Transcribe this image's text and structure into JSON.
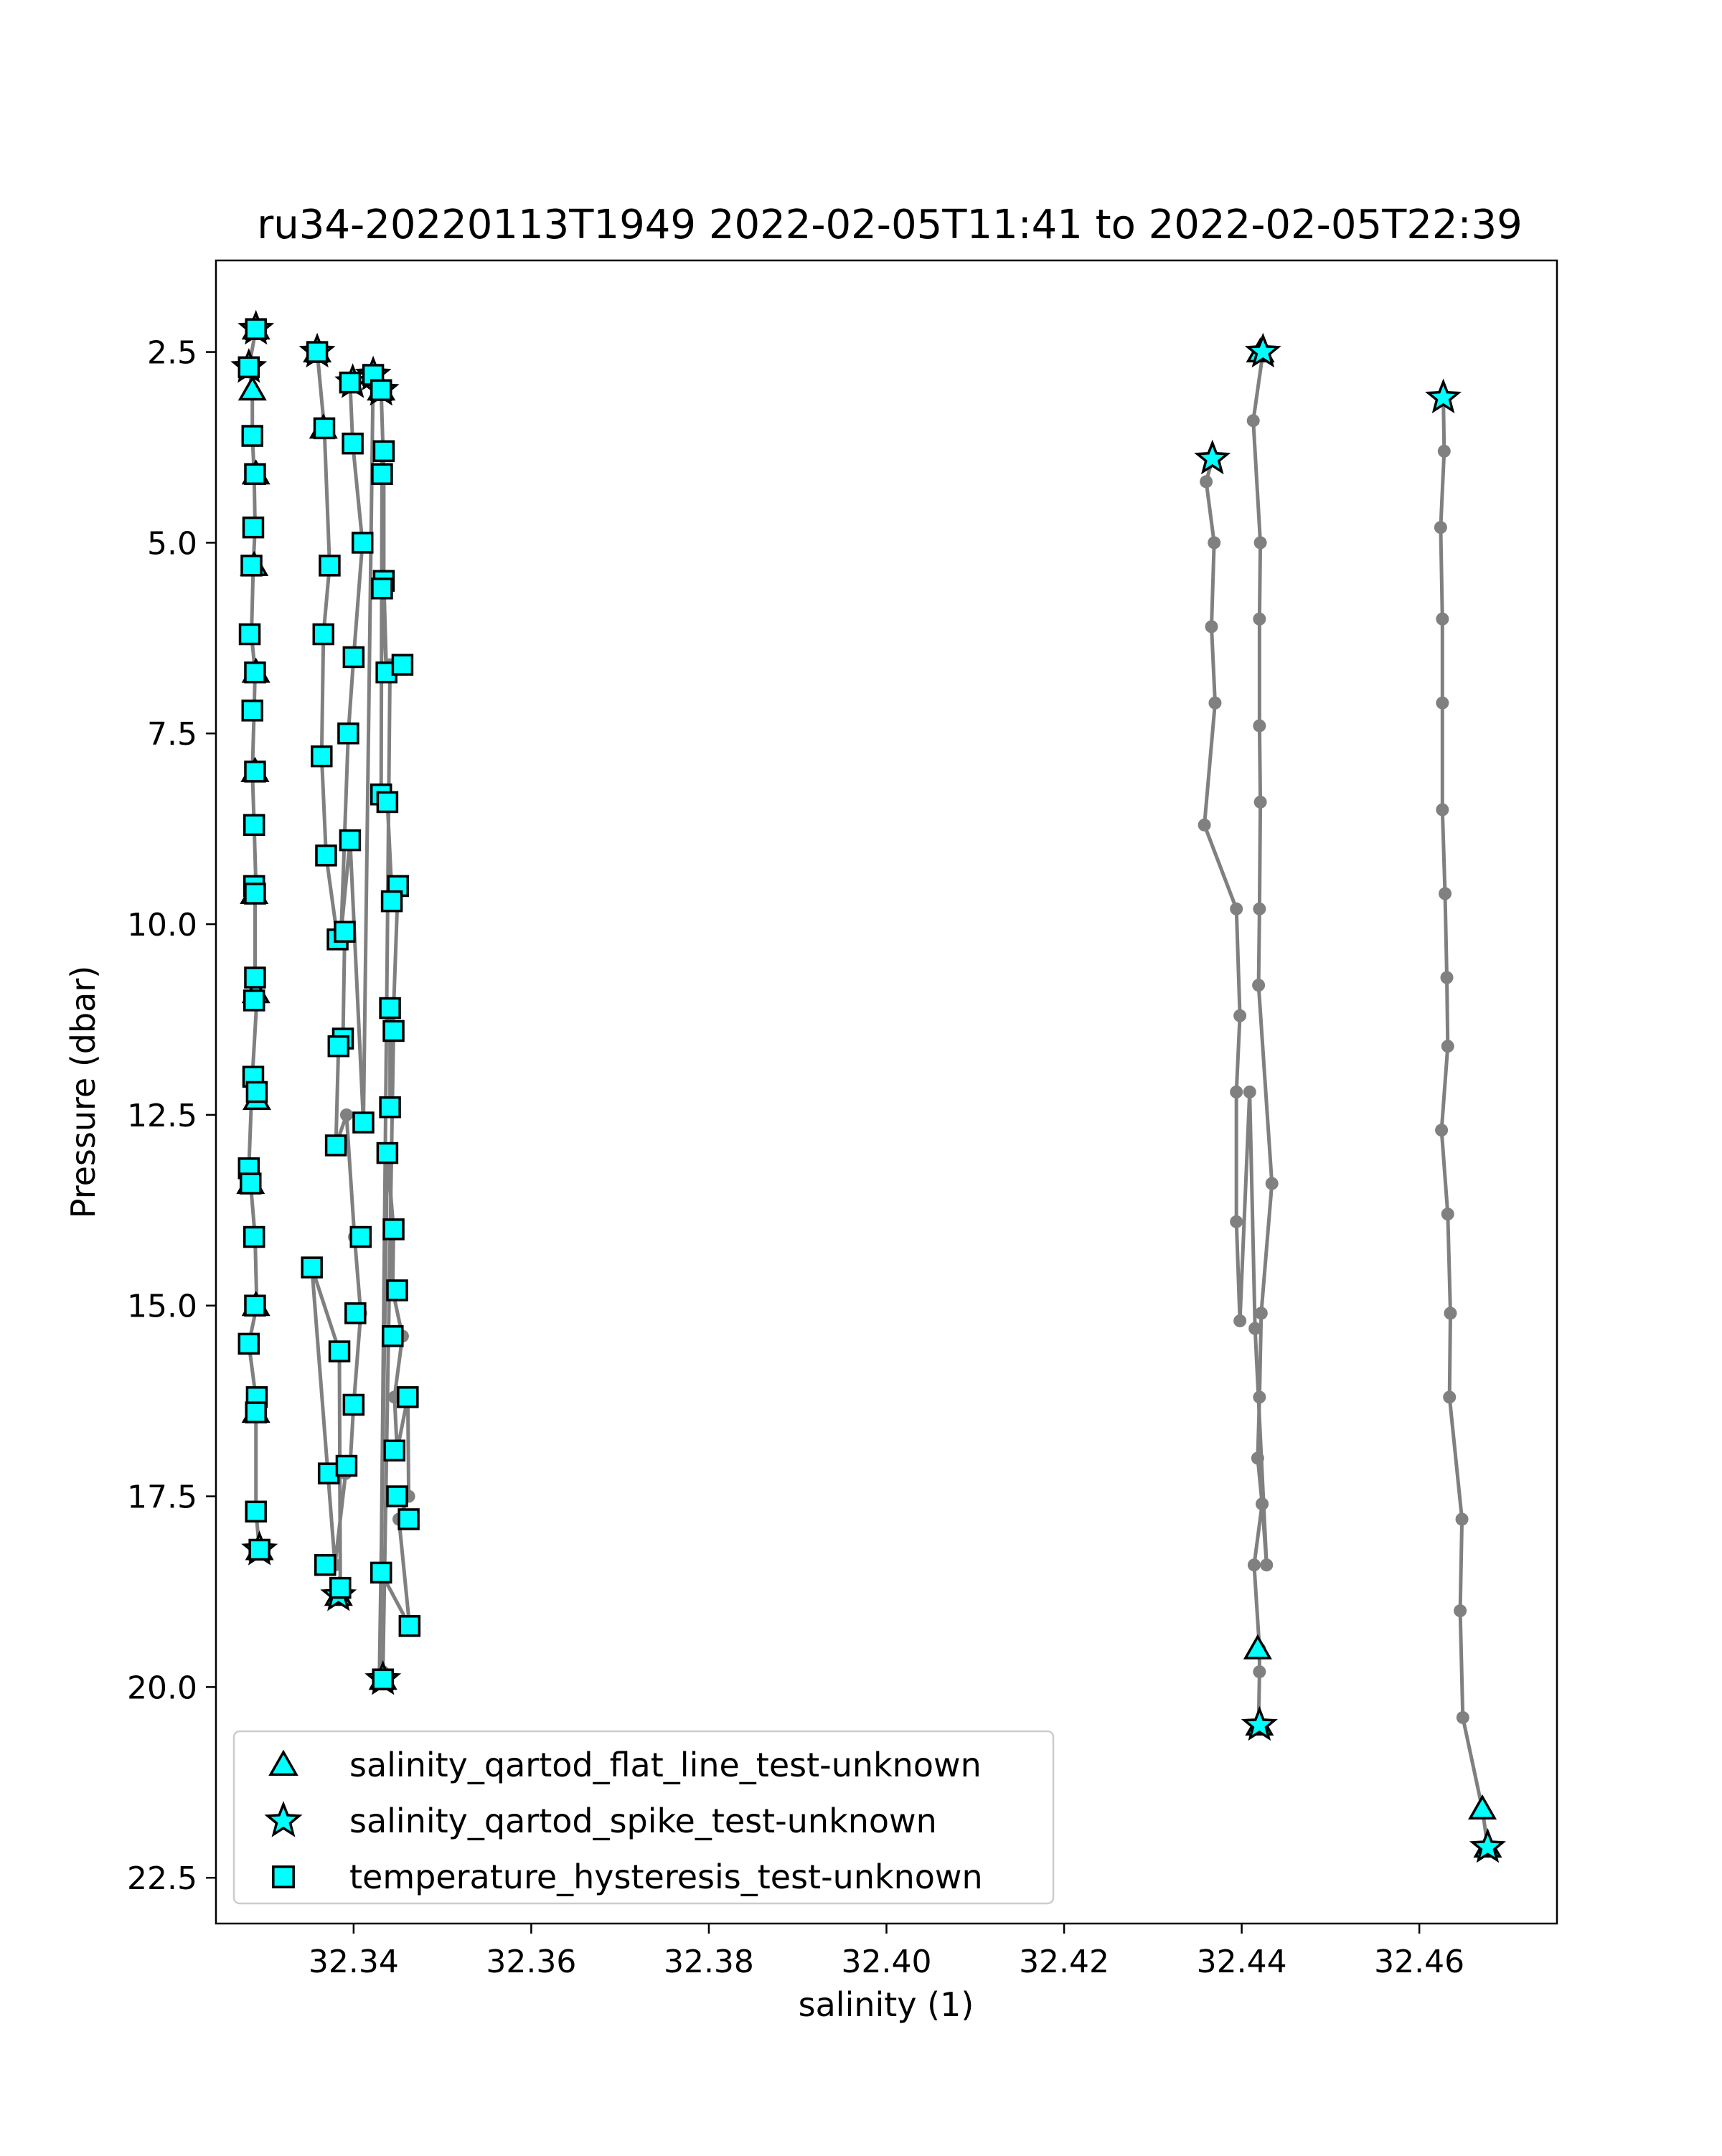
{
  "chart_data": {
    "type": "scatter",
    "title": "ru34-20220113T1949 2022-02-05T11:41 to 2022-02-05T22:39",
    "xlabel": "salinity (1)",
    "ylabel": "Pressure (dbar)",
    "xlim": [
      32.3245,
      32.4755
    ],
    "ylim": [
      23.1,
      1.3
    ],
    "y_inverted": true,
    "grid": false,
    "legend_position": "lower-left",
    "x_ticks": [
      32.34,
      32.36,
      32.38,
      32.4,
      32.42,
      32.44,
      32.46
    ],
    "x_tick_labels": [
      "32.34",
      "32.36",
      "32.38",
      "32.40",
      "32.42",
      "32.44",
      "32.46"
    ],
    "y_ticks": [
      2.5,
      5.0,
      7.5,
      10.0,
      12.5,
      15.0,
      17.5,
      20.0,
      22.5
    ],
    "y_tick_labels": [
      "2.5",
      "5.0",
      "7.5",
      "10.0",
      "12.5",
      "15.0",
      "17.5",
      "20.0",
      "22.5"
    ],
    "line_color": "#808080",
    "marker_color": "#00ffff",
    "profiles": [
      {
        "x": [
          32.329,
          32.3282,
          32.3286,
          32.3286,
          32.3288,
          32.3289,
          32.3287,
          32.3285,
          32.3289,
          32.3288,
          32.3286,
          32.3288,
          32.329,
          32.3289,
          32.3289,
          32.3291,
          32.3286,
          32.3282,
          32.3284,
          32.3289,
          32.3291,
          32.3282,
          32.3291,
          32.329,
          32.329,
          32.3294
        ],
        "y": [
          2.2,
          2.7,
          3.0,
          3.6,
          4.1,
          4.8,
          5.3,
          6.2,
          6.7,
          7.2,
          8.0,
          8.7,
          9.5,
          9.6,
          10.7,
          11.0,
          12.0,
          13.2,
          13.4,
          14.1,
          15.0,
          15.5,
          16.3,
          16.4,
          17.7,
          18.2
        ]
      },
      {
        "x": [
          32.3359,
          32.3367,
          32.3373,
          32.3366,
          32.3364,
          32.3369,
          32.3382,
          32.339,
          32.3388,
          32.3383,
          32.338,
          32.3392,
          32.3401,
          32.3408,
          32.34,
          32.3396,
          32.3391,
          32.3379,
          32.3353,
          32.3384,
          32.3385,
          32.3383
        ],
        "y": [
          2.5,
          3.5,
          5.3,
          6.2,
          7.8,
          9.1,
          10.2,
          10.1,
          11.5,
          11.6,
          12.9,
          12.5,
          14.1,
          15.1,
          16.3,
          17.1,
          17.2,
          18.4,
          14.5,
          15.6,
          18.7,
          18.8
        ]
      },
      {
        "x": [
          32.3396,
          32.3399,
          32.341,
          32.34,
          32.3394,
          32.3386,
          32.3396,
          32.3411,
          32.3422,
          32.3431,
          32.3434,
          32.3434,
          32.3437,
          32.3432,
          32.3432,
          32.3431,
          32.3438,
          32.3443,
          32.345,
          32.3441,
          32.3441,
          32.3445,
          32.3433
        ],
        "y": [
          2.9,
          3.7,
          5.0,
          6.5,
          7.5,
          10.1,
          8.9,
          12.6,
          2.8,
          3.0,
          4.1,
          5.5,
          6.7,
          5.6,
          3.8,
          8.3,
          8.4,
          9.6,
          9.5,
          12.4,
          11.1,
          11.4,
          19.8
        ]
      },
      {
        "x": [
          32.3429,
          32.3438,
          32.3445,
          32.3444,
          32.3455,
          32.3446,
          32.3449,
          32.3461,
          32.3462,
          32.3451,
          32.3463,
          32.3431,
          32.3441
        ],
        "y": [
          19.9,
          13.0,
          14.0,
          14.8,
          15.4,
          16.2,
          16.9,
          16.2,
          17.5,
          17.8,
          19.2,
          18.5,
          6.6
        ]
      },
      {
        "x": [
          32.4424,
          32.4413,
          32.4421,
          32.442,
          32.442,
          32.4421,
          32.442,
          32.4419,
          32.4434,
          32.4422,
          32.442,
          32.4418,
          32.4423,
          32.4414,
          32.442,
          32.442,
          32.4419
        ],
        "y": [
          2.5,
          3.4,
          5.0,
          6.0,
          7.4,
          8.4,
          9.8,
          10.8,
          13.4,
          15.1,
          16.2,
          17.0,
          17.6,
          18.4,
          19.5,
          19.8,
          20.5
        ]
      },
      {
        "x": [
          32.4367,
          32.436,
          32.4369,
          32.4366,
          32.437,
          32.4358,
          32.4394,
          32.4398,
          32.4394,
          32.4394,
          32.4398,
          32.4409,
          32.4415,
          32.4428,
          32.4423
        ],
        "y": [
          3.9,
          4.2,
          5.0,
          6.1,
          7.1,
          8.7,
          9.8,
          11.2,
          12.2,
          13.9,
          15.2,
          12.2,
          15.3,
          18.4,
          17.6
        ]
      },
      {
        "x": [
          32.4627,
          32.4628,
          32.4624,
          32.4626,
          32.4626,
          32.4626,
          32.4629,
          32.4631,
          32.4632,
          32.4625,
          32.4632,
          32.4635,
          32.4634,
          32.4648,
          32.4646,
          32.4649,
          32.4671,
          32.4677
        ],
        "y": [
          3.1,
          3.8,
          4.8,
          6.0,
          7.1,
          8.5,
          9.6,
          10.7,
          11.6,
          12.7,
          13.8,
          15.1,
          16.2,
          17.8,
          19.0,
          20.4,
          21.6,
          22.1
        ]
      }
    ],
    "series": [
      {
        "name": "salinity_qartod_flat_line_test-unknown",
        "marker": "triangle",
        "points": [
          [
            32.329,
            2.2
          ],
          [
            32.3286,
            3.0
          ],
          [
            32.329,
            4.1
          ],
          [
            32.3288,
            5.3
          ],
          [
            32.329,
            6.7
          ],
          [
            32.3289,
            8.0
          ],
          [
            32.3288,
            9.6
          ],
          [
            32.329,
            10.9
          ],
          [
            32.3291,
            12.3
          ],
          [
            32.3284,
            13.4
          ],
          [
            32.329,
            15.0
          ],
          [
            32.329,
            16.4
          ],
          [
            32.3294,
            18.2
          ],
          [
            32.3359,
            2.5
          ],
          [
            32.3366,
            3.5
          ],
          [
            32.3383,
            18.8
          ],
          [
            32.3431,
            3.0
          ],
          [
            32.3433,
            19.9
          ],
          [
            32.4421,
            2.5
          ],
          [
            32.4418,
            19.5
          ],
          [
            32.442,
            20.5
          ],
          [
            32.4671,
            21.6
          ],
          [
            32.4677,
            22.1
          ]
        ]
      },
      {
        "name": "salinity_qartod_spike_test-unknown",
        "marker": "star",
        "points": [
          [
            32.329,
            2.2
          ],
          [
            32.3282,
            2.7
          ],
          [
            32.3294,
            18.2
          ],
          [
            32.3359,
            2.5
          ],
          [
            32.3383,
            18.8
          ],
          [
            32.3399,
            2.9
          ],
          [
            32.3422,
            2.8
          ],
          [
            32.3431,
            3.0
          ],
          [
            32.3433,
            19.9
          ],
          [
            32.4424,
            2.5
          ],
          [
            32.4367,
            3.9
          ],
          [
            32.4627,
            3.1
          ],
          [
            32.442,
            20.5
          ],
          [
            32.4677,
            22.1
          ]
        ]
      },
      {
        "name": "temperature_hysteresis_test-unknown",
        "marker": "square",
        "points": [
          [
            32.329,
            2.2
          ],
          [
            32.3282,
            2.7
          ],
          [
            32.3286,
            3.6
          ],
          [
            32.3289,
            4.1
          ],
          [
            32.3287,
            4.8
          ],
          [
            32.3285,
            5.3
          ],
          [
            32.3283,
            6.2
          ],
          [
            32.3289,
            6.7
          ],
          [
            32.3286,
            7.2
          ],
          [
            32.3289,
            8.0
          ],
          [
            32.3288,
            8.7
          ],
          [
            32.3288,
            9.5
          ],
          [
            32.3289,
            9.6
          ],
          [
            32.3289,
            10.7
          ],
          [
            32.3288,
            11.0
          ],
          [
            32.3287,
            12.0
          ],
          [
            32.3291,
            12.2
          ],
          [
            32.3282,
            13.2
          ],
          [
            32.3284,
            13.4
          ],
          [
            32.3288,
            14.1
          ],
          [
            32.3289,
            15.0
          ],
          [
            32.3282,
            15.5
          ],
          [
            32.3291,
            16.2
          ],
          [
            32.329,
            16.4
          ],
          [
            32.329,
            17.7
          ],
          [
            32.3294,
            18.2
          ],
          [
            32.3359,
            2.5
          ],
          [
            32.3367,
            3.5
          ],
          [
            32.3373,
            5.3
          ],
          [
            32.3366,
            6.2
          ],
          [
            32.3364,
            7.8
          ],
          [
            32.3369,
            9.1
          ],
          [
            32.3382,
            10.2
          ],
          [
            32.339,
            10.1
          ],
          [
            32.3388,
            11.5
          ],
          [
            32.3383,
            11.6
          ],
          [
            32.338,
            12.9
          ],
          [
            32.3353,
            14.5
          ],
          [
            32.3384,
            15.6
          ],
          [
            32.3372,
            17.2
          ],
          [
            32.3392,
            17.1
          ],
          [
            32.3368,
            18.4
          ],
          [
            32.3385,
            18.7
          ],
          [
            32.3396,
            2.9
          ],
          [
            32.3399,
            3.7
          ],
          [
            32.341,
            5.0
          ],
          [
            32.34,
            6.5
          ],
          [
            32.3394,
            7.5
          ],
          [
            32.3396,
            8.9
          ],
          [
            32.3411,
            12.6
          ],
          [
            32.3408,
            14.1
          ],
          [
            32.3402,
            15.1
          ],
          [
            32.34,
            16.3
          ],
          [
            32.3422,
            2.8
          ],
          [
            32.3431,
            3.0
          ],
          [
            32.3434,
            3.8
          ],
          [
            32.3432,
            4.1
          ],
          [
            32.3434,
            5.5
          ],
          [
            32.3432,
            5.6
          ],
          [
            32.3437,
            6.7
          ],
          [
            32.3431,
            8.3
          ],
          [
            32.3438,
            8.4
          ],
          [
            32.3455,
            6.6
          ],
          [
            32.345,
            9.5
          ],
          [
            32.3443,
            9.7
          ],
          [
            32.3441,
            11.1
          ],
          [
            32.3445,
            11.4
          ],
          [
            32.3441,
            12.4
          ],
          [
            32.3438,
            13.0
          ],
          [
            32.3445,
            14.0
          ],
          [
            32.3449,
            14.8
          ],
          [
            32.3444,
            15.4
          ],
          [
            32.3461,
            16.2
          ],
          [
            32.3446,
            16.9
          ],
          [
            32.3449,
            17.5
          ],
          [
            32.3462,
            17.8
          ],
          [
            32.3431,
            18.5
          ],
          [
            32.3463,
            19.2
          ],
          [
            32.3433,
            19.9
          ]
        ]
      }
    ]
  }
}
